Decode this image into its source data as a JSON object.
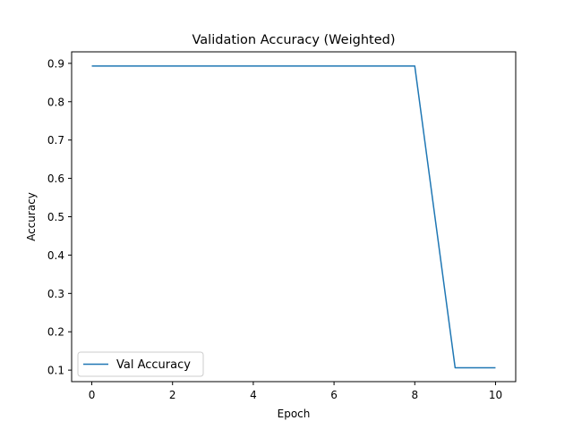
{
  "chart_data": {
    "type": "line",
    "title": "Validation Accuracy (Weighted)",
    "xlabel": "Epoch",
    "ylabel": "Accuracy",
    "x": [
      0,
      1,
      2,
      3,
      4,
      5,
      6,
      7,
      8,
      9,
      10
    ],
    "xlim": [
      -0.5,
      10.5
    ],
    "ylim": [
      0.07,
      0.93
    ],
    "xticks": [
      0,
      2,
      4,
      6,
      8,
      10
    ],
    "xtick_labels": [
      "0",
      "2",
      "4",
      "6",
      "8",
      "10"
    ],
    "yticks": [
      0.1,
      0.2,
      0.3,
      0.4,
      0.5,
      0.6,
      0.7,
      0.8,
      0.9
    ],
    "ytick_labels": [
      "0.1",
      "0.2",
      "0.3",
      "0.4",
      "0.5",
      "0.6",
      "0.7",
      "0.8",
      "0.9"
    ],
    "grid": false,
    "legend_position": "lower-left",
    "series": [
      {
        "name": "Val Accuracy",
        "color": "#1f77b4",
        "values": [
          0.893,
          0.893,
          0.893,
          0.893,
          0.893,
          0.893,
          0.893,
          0.893,
          0.893,
          0.106,
          0.106
        ]
      }
    ]
  }
}
